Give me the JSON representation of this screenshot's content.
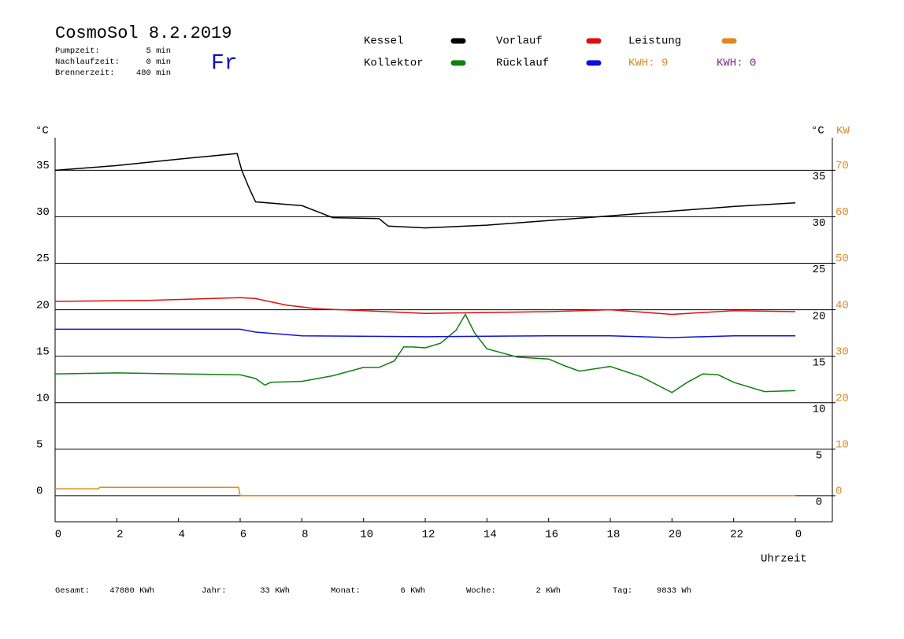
{
  "header": {
    "title": "CosmoSol 8.2.2019",
    "day": "Fr",
    "times": [
      {
        "label": "Pumpzeit:",
        "value": "5 min"
      },
      {
        "label": "Nachlaufzeit:",
        "value": "0 min"
      },
      {
        "label": "Brennerzeit:",
        "value": "480 min"
      }
    ],
    "kwh": [
      {
        "text": "KWH: 9",
        "color": "#e08a1e"
      },
      {
        "text": "KWH: 0",
        "color": "#7a2a8a"
      }
    ]
  },
  "chart_data": {
    "type": "line",
    "ylabel": "°C",
    "y2label_unit": "°C",
    "y2label": "KW",
    "xlabel": "Uhrzeit",
    "xlim": [
      0,
      24
    ],
    "xticks": [
      0,
      2,
      4,
      6,
      8,
      10,
      12,
      14,
      16,
      18,
      20,
      22,
      {
        "value": 24,
        "label": "0"
      }
    ],
    "ylim": [
      -2.8,
      38.5
    ],
    "yticks": [
      0,
      5,
      10,
      15,
      20,
      25,
      30,
      35
    ],
    "y2lim": [
      -5.6,
      77
    ],
    "y2ticks": [
      0,
      10,
      20,
      30,
      40,
      50,
      60,
      70
    ],
    "y2color": "#e08a1e",
    "grid": true,
    "series": [
      {
        "name": "Kessel",
        "color": "#000000",
        "x": [
          0,
          2,
          4,
          5.9,
          6.05,
          6.3,
          6.5,
          8,
          8.7,
          9,
          10.5,
          10.8,
          12,
          14,
          16,
          18,
          20,
          22,
          24
        ],
        "values": [
          35.0,
          35.5,
          36.2,
          36.8,
          35.0,
          33.0,
          31.6,
          31.2,
          30.3,
          29.9,
          29.8,
          29.0,
          28.8,
          29.1,
          29.6,
          30.1,
          30.6,
          31.1,
          31.5
        ]
      },
      {
        "name": "Vorlauf",
        "color": "#e01010",
        "x": [
          0,
          3,
          6,
          6.5,
          7.5,
          8.5,
          10,
          12,
          14,
          16,
          18,
          20,
          22,
          24
        ],
        "values": [
          20.9,
          21.0,
          21.3,
          21.2,
          20.5,
          20.1,
          19.9,
          19.6,
          19.7,
          19.8,
          20.0,
          19.5,
          19.9,
          19.8
        ]
      },
      {
        "name": "Leistung",
        "color": "#e08a1e",
        "axis": "y2",
        "x": [
          0,
          1.4,
          1.45,
          5.95,
          6.0,
          24
        ],
        "values": [
          1.5,
          1.5,
          1.8,
          1.8,
          0,
          0
        ]
      },
      {
        "name": "Kollektor",
        "color": "#108010",
        "x": [
          0,
          2,
          4,
          6,
          6.5,
          6.8,
          7,
          8,
          9,
          10,
          10.5,
          11,
          11.3,
          11.6,
          12,
          12.5,
          13,
          13.3,
          13.6,
          14,
          15,
          16,
          16.5,
          17,
          18,
          19,
          20,
          20.5,
          21,
          21.5,
          22,
          23,
          24
        ],
        "values": [
          13.1,
          13.2,
          13.1,
          13.0,
          12.6,
          11.9,
          12.2,
          12.3,
          12.9,
          13.8,
          13.8,
          14.5,
          16.0,
          16.0,
          15.9,
          16.4,
          17.8,
          19.5,
          17.5,
          15.8,
          14.9,
          14.7,
          14.0,
          13.4,
          13.9,
          12.8,
          11.1,
          12.2,
          13.1,
          13.0,
          12.2,
          11.2,
          11.3
        ]
      },
      {
        "name": "Rücklauf",
        "color": "#1010e0",
        "x": [
          0,
          3,
          6,
          6.5,
          8,
          12,
          16,
          18,
          20,
          22,
          24
        ],
        "values": [
          17.9,
          17.9,
          17.9,
          17.6,
          17.2,
          17.1,
          17.2,
          17.2,
          17.0,
          17.2,
          17.2
        ]
      }
    ]
  },
  "footer": [
    {
      "label": "Gesamt:",
      "value": "47880 KWh"
    },
    {
      "label": "Jahr:",
      "value": "33 KWh"
    },
    {
      "label": "Monat:",
      "value": "6 KWh"
    },
    {
      "label": "Woche:",
      "value": "2 KWh"
    },
    {
      "label": "Tag:",
      "value": "9833 Wh"
    }
  ]
}
